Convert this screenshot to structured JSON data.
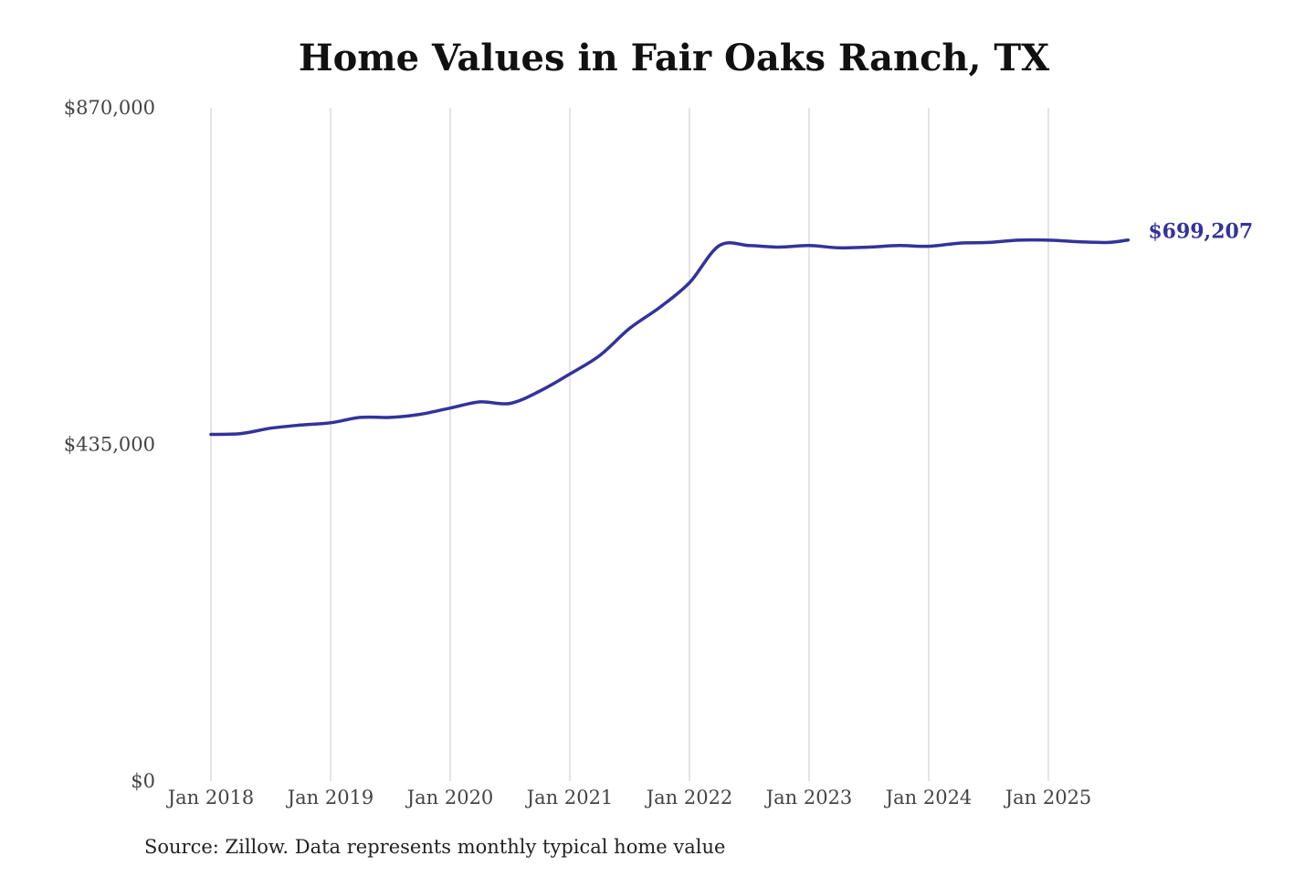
{
  "chart_data": {
    "type": "line",
    "title": "Home Values in Fair Oaks Ranch, TX",
    "xlabel": "",
    "ylabel": "",
    "ylim": [
      0,
      870000
    ],
    "y_ticks": [
      0,
      435000,
      870000
    ],
    "y_tick_labels": [
      "$0",
      "$435,000",
      "$870,000"
    ],
    "x_ticks": [
      "2018-01",
      "2019-01",
      "2020-01",
      "2021-01",
      "2022-01",
      "2023-01",
      "2024-01",
      "2025-01"
    ],
    "x_tick_labels": [
      "Jan 2018",
      "Jan 2019",
      "Jan 2020",
      "Jan 2021",
      "Jan 2022",
      "Jan 2023",
      "Jan 2024",
      "Jan 2025"
    ],
    "grid": "vertical",
    "line_color": "#33339a",
    "end_label": "$699,207",
    "series": [
      {
        "x": [
          "2018-01",
          "2018-04",
          "2018-07",
          "2018-10",
          "2019-01",
          "2019-04",
          "2019-07",
          "2019-10",
          "2020-01",
          "2020-04",
          "2020-07",
          "2020-10",
          "2021-01",
          "2021-04",
          "2021-07",
          "2021-10",
          "2022-01",
          "2022-04",
          "2022-07",
          "2022-10",
          "2023-01",
          "2023-04",
          "2023-07",
          "2023-10",
          "2024-01",
          "2024-04",
          "2024-07",
          "2024-10",
          "2025-01",
          "2025-04",
          "2025-07",
          "2025-09"
        ],
        "values": [
          448000,
          449000,
          456000,
          460000,
          463000,
          470000,
          470000,
          474000,
          482000,
          490000,
          488000,
          504000,
          526000,
          550000,
          585000,
          612000,
          644000,
          692000,
          692000,
          690000,
          692000,
          689000,
          690000,
          692000,
          691000,
          695000,
          696000,
          699000,
          699000,
          697000,
          696000,
          699207
        ]
      }
    ],
    "source": "Source: Zillow. Data represents monthly typical home value"
  }
}
